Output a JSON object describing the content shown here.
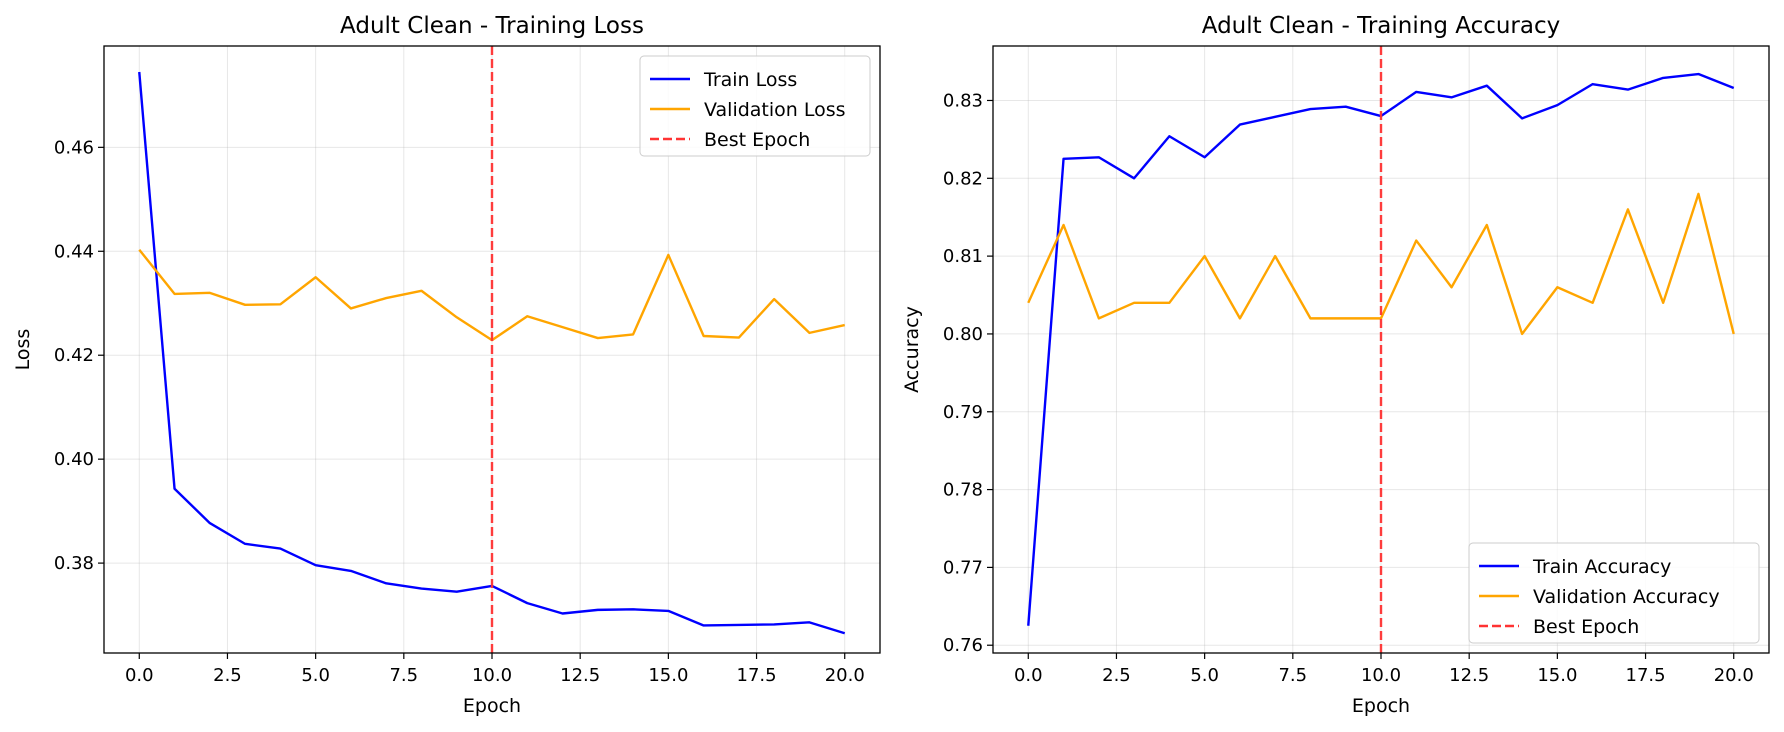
{
  "chart_data": [
    {
      "type": "line",
      "title": "Adult Clean - Training Loss",
      "xlabel": "Epoch",
      "ylabel": "Loss",
      "xlim": [
        -1,
        21
      ],
      "ylim": [
        0.3627,
        0.4795
      ],
      "xticks": [
        0.0,
        2.5,
        5.0,
        7.5,
        10.0,
        12.5,
        15.0,
        17.5,
        20.0
      ],
      "xtick_labels": [
        "0.0",
        "2.5",
        "5.0",
        "7.5",
        "10.0",
        "12.5",
        "15.0",
        "17.5",
        "20.0"
      ],
      "yticks": [
        0.38,
        0.4,
        0.42,
        0.44,
        0.46
      ],
      "ytick_labels": [
        "0.38",
        "0.40",
        "0.42",
        "0.44",
        "0.46"
      ],
      "grid": true,
      "legend_position": "upper right",
      "best_epoch": 10,
      "best_epoch_label": "Best Epoch",
      "best_epoch_color": "#ff3333",
      "x": [
        0,
        1,
        2,
        3,
        4,
        5,
        6,
        7,
        8,
        9,
        10,
        11,
        12,
        13,
        14,
        15,
        16,
        17,
        18,
        19,
        20
      ],
      "series": [
        {
          "name": "Train Loss",
          "color": "#0000ff",
          "values": [
            0.4745,
            0.3943,
            0.3877,
            0.3837,
            0.3828,
            0.3796,
            0.3785,
            0.3761,
            0.3751,
            0.3745,
            0.3756,
            0.3723,
            0.3703,
            0.371,
            0.3711,
            0.3708,
            0.368,
            0.3681,
            0.3682,
            0.3686,
            0.3665
          ]
        },
        {
          "name": "Validation Loss",
          "color": "#ffa500",
          "values": [
            0.4403,
            0.4318,
            0.432,
            0.4297,
            0.4298,
            0.435,
            0.429,
            0.431,
            0.4324,
            0.4273,
            0.4229,
            0.4275,
            0.4254,
            0.4233,
            0.424,
            0.4393,
            0.4237,
            0.4234,
            0.4308,
            0.4243,
            0.4258
          ]
        }
      ]
    },
    {
      "type": "line",
      "title": "Adult Clean - Training Accuracy",
      "xlabel": "Epoch",
      "ylabel": "Accuracy",
      "xlim": [
        -1,
        21
      ],
      "ylim": [
        0.759,
        0.837
      ],
      "xticks": [
        0.0,
        2.5,
        5.0,
        7.5,
        10.0,
        12.5,
        15.0,
        17.5,
        20.0
      ],
      "xtick_labels": [
        "0.0",
        "2.5",
        "5.0",
        "7.5",
        "10.0",
        "12.5",
        "15.0",
        "17.5",
        "20.0"
      ],
      "yticks": [
        0.76,
        0.77,
        0.78,
        0.79,
        0.8,
        0.81,
        0.82,
        0.83
      ],
      "ytick_labels": [
        "0.76",
        "0.77",
        "0.78",
        "0.79",
        "0.80",
        "0.81",
        "0.82",
        "0.83"
      ],
      "grid": true,
      "legend_position": "lower right",
      "best_epoch": 10,
      "best_epoch_label": "Best Epoch",
      "best_epoch_color": "#ff3333",
      "x": [
        0,
        1,
        2,
        3,
        4,
        5,
        6,
        7,
        8,
        9,
        10,
        11,
        12,
        13,
        14,
        15,
        16,
        17,
        18,
        19,
        20
      ],
      "series": [
        {
          "name": "Train Accuracy",
          "color": "#0000ff",
          "values": [
            0.7625,
            0.8225,
            0.8227,
            0.82,
            0.8254,
            0.8227,
            0.8269,
            0.8279,
            0.8289,
            0.8292,
            0.828,
            0.8311,
            0.8304,
            0.8319,
            0.8277,
            0.8294,
            0.8321,
            0.8314,
            0.8329,
            0.8334,
            0.8316
          ]
        },
        {
          "name": "Validation Accuracy",
          "color": "#ffa500",
          "values": [
            0.804,
            0.814,
            0.802,
            0.804,
            0.804,
            0.81,
            0.802,
            0.81,
            0.802,
            0.802,
            0.802,
            0.812,
            0.806,
            0.814,
            0.8,
            0.806,
            0.804,
            0.816,
            0.804,
            0.818,
            0.8
          ]
        }
      ]
    }
  ]
}
